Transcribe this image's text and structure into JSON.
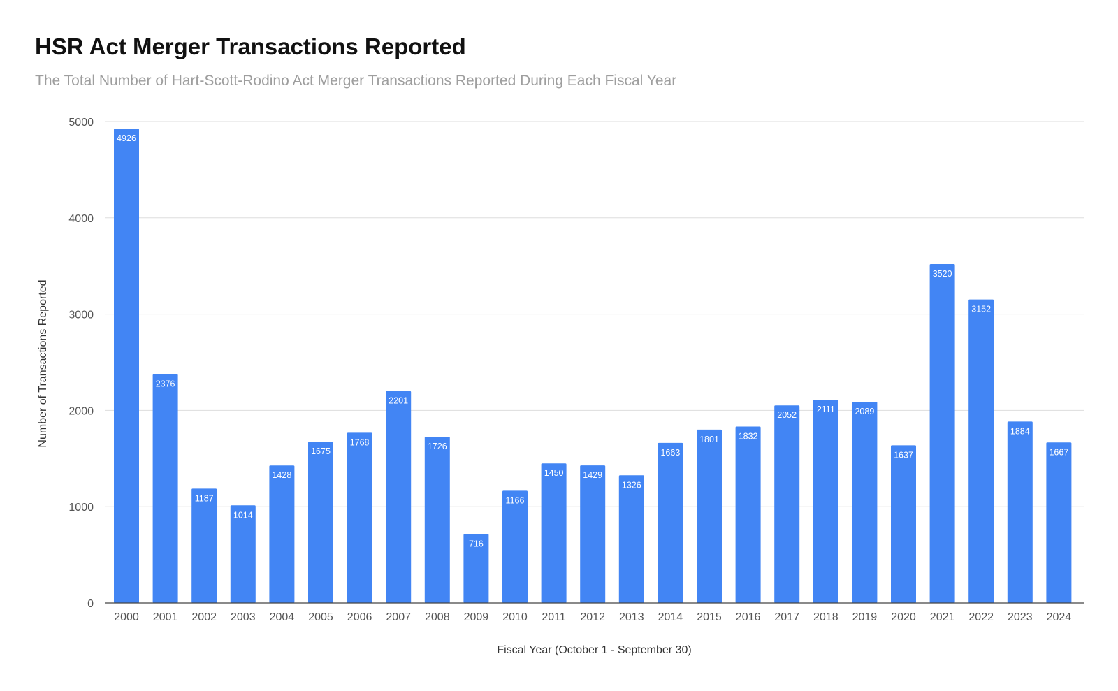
{
  "chart_data": {
    "type": "bar",
    "title": "HSR Act Merger Transactions Reported",
    "subtitle": "The Total Number of Hart-Scott-Rodino Act Merger Transactions Reported During Each Fiscal Year",
    "xlabel": "Fiscal Year (October 1 - September 30)",
    "ylabel": "Number of Transactions Reported",
    "categories": [
      "2000",
      "2001",
      "2002",
      "2003",
      "2004",
      "2005",
      "2006",
      "2007",
      "2008",
      "2009",
      "2010",
      "2011",
      "2012",
      "2013",
      "2014",
      "2015",
      "2016",
      "2017",
      "2018",
      "2019",
      "2020",
      "2021",
      "2022",
      "2023",
      "2024"
    ],
    "values": [
      4926,
      2376,
      1187,
      1014,
      1428,
      1675,
      1768,
      2201,
      1726,
      716,
      1166,
      1450,
      1429,
      1326,
      1663,
      1801,
      1832,
      2052,
      2111,
      2089,
      1637,
      3520,
      3152,
      1884,
      1667
    ],
    "ylim": [
      0,
      5000
    ],
    "yticks": [
      "0",
      "1000",
      "2000",
      "3000",
      "4000",
      "5000"
    ],
    "grid": true,
    "legend": "none",
    "data_labels": "inside-top",
    "colors": {
      "bar": "#4285f4",
      "grid": "#dddddd",
      "axis": "#444444"
    }
  }
}
